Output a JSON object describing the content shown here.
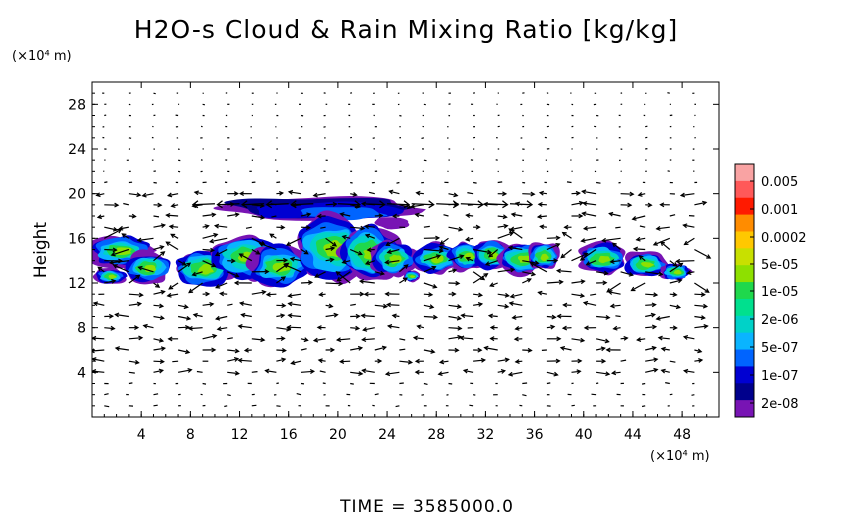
{
  "chart_data": {
    "type": "heatmap",
    "title": "H2O-s Cloud & Rain Mixing Ratio [kg/kg]",
    "y_unit": "(×10⁴ m)",
    "x_unit": "(×10⁴ m)",
    "ylabel": "Height",
    "xlim": [
      0,
      51
    ],
    "ylim": [
      0,
      30
    ],
    "x_ticks": [
      "4",
      "8",
      "12",
      "16",
      "20",
      "24",
      "28",
      "32",
      "36",
      "40",
      "44",
      "48"
    ],
    "y_ticks": [
      "4",
      "8",
      "12",
      "16",
      "20",
      "24",
      "28"
    ],
    "time_label": "TIME  =  3585000.0",
    "colorbar": {
      "labels": [
        "0.005",
        "0.001",
        "0.0002",
        "5e-05",
        "1e-05",
        "2e-06",
        "5e-07",
        "1e-07",
        "2e-08"
      ],
      "colors": [
        "#f9a3a3",
        "#ff5959",
        "#ff1a00",
        "#ff8c00",
        "#ffc800",
        "#c8e000",
        "#8ee000",
        "#1fd84c",
        "#00e08e",
        "#00d2c8",
        "#0ab4ff",
        "#0064ff",
        "#0000d2",
        "#00008c",
        "#7814b4"
      ]
    },
    "cloud_regions": [
      {
        "x": [
          0,
          6
        ],
        "y": [
          11.5,
          16.5
        ],
        "level": "1e-05"
      },
      {
        "x": [
          8,
          18
        ],
        "y": [
          11,
          17.5
        ],
        "level": "1e-05"
      },
      {
        "x": [
          14,
          26
        ],
        "y": [
          11,
          19.5
        ],
        "level": "1e-05"
      },
      {
        "x": [
          10,
          27
        ],
        "y": [
          17.5,
          19.8
        ],
        "level": "1e-07"
      },
      {
        "x": [
          26.5,
          37.5
        ],
        "y": [
          11.5,
          16.5
        ],
        "level": "1e-05"
      },
      {
        "x": [
          39.5,
          48.5
        ],
        "y": [
          11.5,
          16
        ],
        "level": "1e-05"
      }
    ],
    "grid": false
  }
}
